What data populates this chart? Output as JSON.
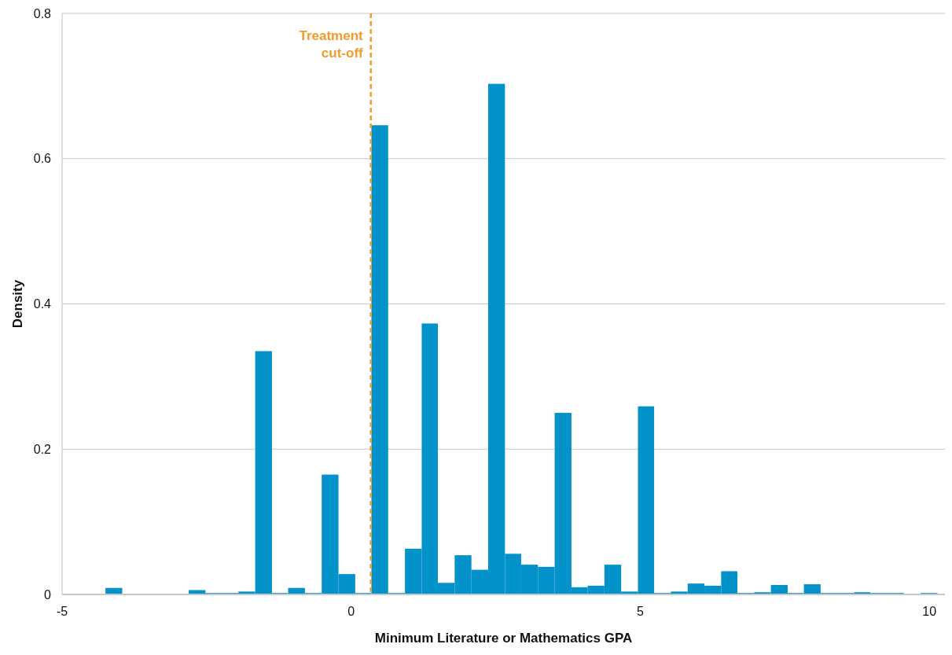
{
  "chart_data": {
    "type": "histogram",
    "xlabel": "Minimum Literature or Mathematics GPA",
    "ylabel": "Density",
    "color": "#0392ca",
    "bins": [
      -4.25,
      -3.96,
      -2.81,
      -2.52,
      -2.24,
      -1.95,
      -1.66,
      -1.37,
      -1.09,
      -0.8,
      -0.51,
      -0.22,
      0.07,
      0.35,
      0.64,
      0.93,
      1.22,
      1.5,
      1.79,
      2.08,
      2.37,
      2.66,
      2.94,
      3.23,
      3.52,
      3.81,
      4.09,
      4.38,
      4.67,
      4.96,
      5.24,
      5.53,
      5.82,
      6.11,
      6.4,
      6.68,
      6.97,
      7.26,
      7.55,
      7.83,
      8.12,
      8.41,
      8.7,
      8.98,
      9.27,
      9.56,
      9.85,
      10.14
    ],
    "values": [
      0.009,
      0,
      0.006,
      0.002,
      0.002,
      0.004,
      0.335,
      0.002,
      0.009,
      0.002,
      0.165,
      0.028,
      0.002,
      0.646,
      0.002,
      0.063,
      0.373,
      0.016,
      0.054,
      0.034,
      0.703,
      0.056,
      0.041,
      0.038,
      0.25,
      0.01,
      0.012,
      0.041,
      0.004,
      0.259,
      0.002,
      0.004,
      0.015,
      0.012,
      0.032,
      0.002,
      0.003,
      0.013,
      0.002,
      0.014,
      0.002,
      0.002,
      0.003,
      0.002,
      0.002,
      0,
      0.002
    ],
    "xlim": [
      -5,
      10.27
    ],
    "ylim": [
      0,
      0.8
    ],
    "xticks": [
      -5,
      0,
      5,
      10
    ],
    "yticks": [
      0,
      0.2,
      0.4,
      0.6,
      0.8
    ],
    "grid": "y",
    "ref_lines": [
      {
        "axis": "x",
        "value": 0.34,
        "label": "Treatment cut-off",
        "color": "#f39a2b",
        "line_style": "dashed"
      }
    ]
  }
}
